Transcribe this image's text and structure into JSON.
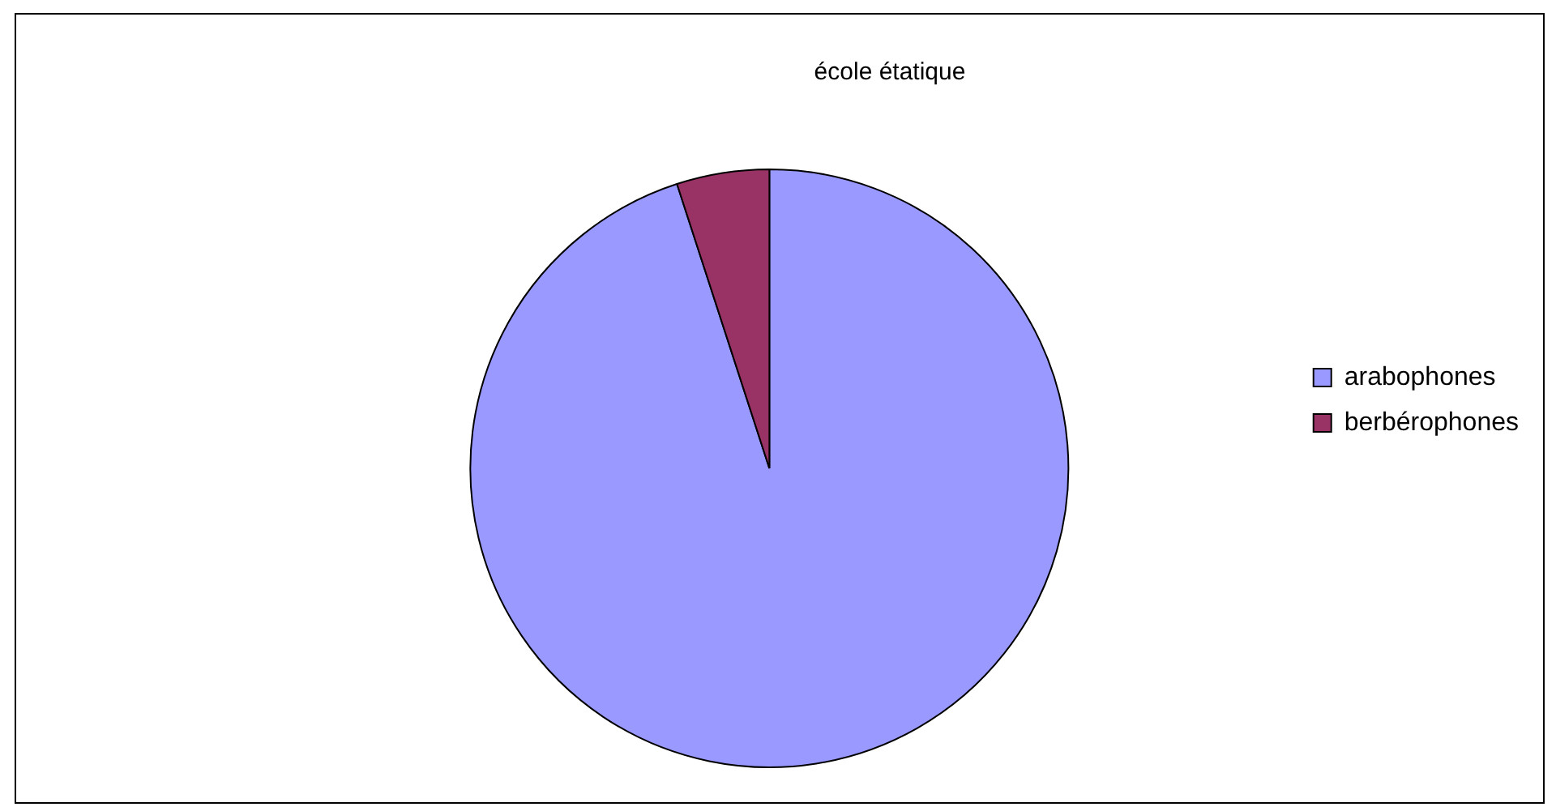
{
  "chart_data": {
    "type": "pie",
    "title": "école étatique",
    "categories": [
      "arabophones",
      "berbérophones"
    ],
    "values": [
      95,
      5
    ],
    "colors": [
      "#9999ff",
      "#993366"
    ],
    "legend": "right"
  }
}
